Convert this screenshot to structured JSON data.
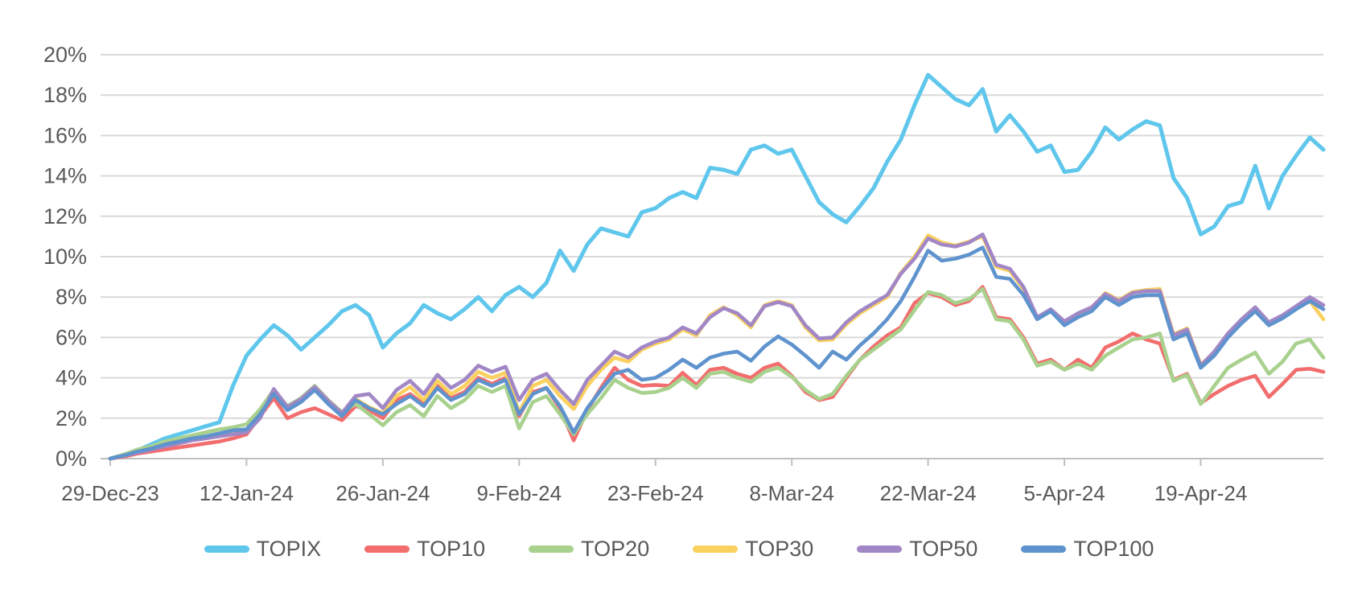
{
  "chart_data": {
    "type": "line",
    "title": "",
    "xlabel": "",
    "ylabel": "",
    "ylim": [
      0,
      20
    ],
    "y_tick_step": 2,
    "y_tick_labels": [
      "0%",
      "2%",
      "4%",
      "6%",
      "8%",
      "10%",
      "12%",
      "14%",
      "16%",
      "18%",
      "20%"
    ],
    "grid": "horizontal",
    "legend_position": "bottom",
    "n_points": 90,
    "x_unit": "weekday trading days",
    "x_tick_indices": [
      0,
      10,
      20,
      30,
      40,
      50,
      60,
      70,
      80
    ],
    "x_tick_labels": [
      "29-Dec-23",
      "12-Jan-24",
      "26-Jan-24",
      "9-Feb-24",
      "23-Feb-24",
      "8-Mar-24",
      "22-Mar-24",
      "5-Apr-24",
      "19-Apr-24"
    ],
    "series": [
      {
        "name": "TOPIX",
        "color": "#5FC6EC",
        "stroke_width": 5,
        "values": [
          0,
          0.2,
          0.4,
          0.7,
          1.0,
          1.2,
          1.4,
          1.6,
          1.8,
          3.6,
          5.1,
          5.9,
          6.6,
          6.1,
          5.4,
          6.0,
          6.6,
          7.3,
          7.6,
          7.1,
          5.5,
          6.2,
          6.7,
          7.6,
          7.2,
          6.9,
          7.4,
          8.0,
          7.3,
          8.1,
          8.5,
          8.0,
          8.7,
          10.3,
          9.3,
          10.6,
          11.4,
          11.2,
          11.0,
          12.2,
          12.4,
          12.9,
          13.2,
          12.9,
          14.4,
          14.3,
          14.1,
          15.3,
          15.5,
          15.1,
          15.3,
          14.0,
          12.7,
          12.1,
          11.7,
          12.5,
          13.4,
          14.7,
          15.8,
          17.5,
          19.0,
          18.4,
          17.8,
          17.5,
          18.3,
          16.2,
          17.0,
          16.2,
          15.2,
          15.5,
          14.2,
          14.3,
          15.2,
          16.4,
          15.8,
          16.3,
          16.7,
          16.5,
          13.9,
          12.9,
          11.1,
          11.5,
          12.5,
          12.7,
          14.5,
          12.4,
          14.0,
          15.0,
          15.9,
          15.3
        ]
      },
      {
        "name": "TOP10",
        "color": "#F26D6D",
        "stroke_width": 4.6,
        "values": [
          0,
          0.1,
          0.25,
          0.35,
          0.45,
          0.55,
          0.65,
          0.75,
          0.85,
          1.0,
          1.2,
          2.1,
          3.0,
          2.0,
          2.3,
          2.5,
          2.2,
          1.9,
          2.6,
          2.4,
          2.0,
          2.9,
          3.2,
          2.7,
          3.6,
          3.0,
          3.3,
          4.0,
          3.7,
          4.0,
          2.1,
          3.3,
          3.5,
          2.5,
          0.9,
          2.4,
          3.5,
          4.5,
          3.9,
          3.6,
          3.65,
          3.6,
          4.25,
          3.65,
          4.4,
          4.5,
          4.2,
          4.0,
          4.5,
          4.7,
          4.1,
          3.3,
          2.9,
          3.05,
          4.0,
          4.9,
          5.55,
          6.1,
          6.5,
          7.7,
          8.2,
          8.0,
          7.6,
          7.8,
          8.5,
          7.0,
          6.9,
          6.0,
          4.7,
          4.9,
          4.4,
          4.9,
          4.5,
          5.5,
          5.8,
          6.2,
          5.9,
          5.7,
          3.9,
          4.2,
          2.75,
          3.2,
          3.6,
          3.9,
          4.1,
          3.05,
          3.7,
          4.4,
          4.45,
          4.3
        ]
      },
      {
        "name": "TOP20",
        "color": "#A9D18E",
        "stroke_width": 4.6,
        "values": [
          0,
          0.2,
          0.45,
          0.6,
          0.85,
          1.0,
          1.15,
          1.3,
          1.45,
          1.55,
          1.7,
          2.45,
          3.4,
          2.6,
          3.0,
          3.6,
          2.9,
          2.3,
          2.7,
          2.2,
          1.65,
          2.3,
          2.65,
          2.1,
          3.1,
          2.5,
          2.9,
          3.6,
          3.3,
          3.6,
          1.5,
          2.8,
          3.1,
          2.2,
          1.2,
          2.2,
          3.0,
          3.9,
          3.5,
          3.25,
          3.3,
          3.5,
          4.0,
          3.5,
          4.2,
          4.3,
          4.0,
          3.8,
          4.3,
          4.5,
          4.05,
          3.4,
          2.95,
          3.2,
          4.1,
          4.9,
          5.4,
          5.9,
          6.4,
          7.35,
          8.25,
          8.1,
          7.7,
          7.9,
          8.4,
          6.9,
          6.8,
          5.9,
          4.6,
          4.8,
          4.4,
          4.7,
          4.4,
          5.1,
          5.5,
          5.9,
          6.0,
          6.2,
          3.85,
          4.15,
          2.7,
          3.6,
          4.5,
          4.9,
          5.25,
          4.2,
          4.8,
          5.7,
          5.9,
          5.0
        ]
      },
      {
        "name": "TOP30",
        "color": "#FAD05F",
        "stroke_width": 4.6,
        "values": [
          0,
          0.15,
          0.35,
          0.5,
          0.7,
          0.85,
          1.0,
          1.1,
          1.25,
          1.35,
          1.4,
          2.15,
          3.25,
          2.45,
          2.85,
          3.45,
          2.75,
          2.15,
          2.95,
          2.55,
          2.25,
          3.1,
          3.55,
          2.9,
          3.85,
          3.2,
          3.6,
          4.3,
          4.0,
          4.25,
          2.3,
          3.6,
          3.9,
          3.1,
          2.45,
          3.6,
          4.4,
          5.0,
          4.8,
          5.4,
          5.7,
          5.9,
          6.4,
          6.1,
          7.1,
          7.5,
          7.1,
          6.5,
          7.6,
          7.8,
          7.6,
          6.5,
          5.85,
          5.9,
          6.65,
          7.2,
          7.6,
          8.0,
          9.2,
          10.0,
          11.05,
          10.7,
          10.55,
          10.75,
          11.0,
          9.5,
          9.3,
          8.4,
          6.95,
          7.35,
          6.75,
          7.15,
          7.45,
          8.2,
          7.85,
          8.25,
          8.35,
          8.4,
          6.15,
          6.45,
          4.65,
          5.25,
          6.15,
          6.85,
          7.45,
          6.7,
          7.05,
          7.5,
          7.8,
          6.9
        ]
      },
      {
        "name": "TOP50",
        "color": "#A287C6",
        "stroke_width": 4.6,
        "values": [
          0,
          0.15,
          0.3,
          0.45,
          0.6,
          0.75,
          0.9,
          1.0,
          1.1,
          1.2,
          1.3,
          2.0,
          3.45,
          2.55,
          2.95,
          3.55,
          2.85,
          2.25,
          3.1,
          3.2,
          2.5,
          3.4,
          3.85,
          3.2,
          4.15,
          3.5,
          3.9,
          4.6,
          4.3,
          4.55,
          2.9,
          3.9,
          4.2,
          3.4,
          2.7,
          3.9,
          4.6,
          5.3,
          5.0,
          5.5,
          5.8,
          6.0,
          6.5,
          6.2,
          7.0,
          7.45,
          7.2,
          6.6,
          7.55,
          7.75,
          7.55,
          6.6,
          5.95,
          6.0,
          6.75,
          7.3,
          7.7,
          8.1,
          9.15,
          9.9,
          10.9,
          10.6,
          10.5,
          10.7,
          11.1,
          9.6,
          9.4,
          8.5,
          7.0,
          7.4,
          6.8,
          7.2,
          7.5,
          8.15,
          7.8,
          8.2,
          8.3,
          8.3,
          6.1,
          6.4,
          4.6,
          5.3,
          6.2,
          6.9,
          7.5,
          6.75,
          7.1,
          7.55,
          8.0,
          7.6
        ]
      },
      {
        "name": "TOP100",
        "color": "#5F93CE",
        "stroke_width": 4.6,
        "values": [
          0,
          0.15,
          0.35,
          0.5,
          0.7,
          0.85,
          1.0,
          1.1,
          1.25,
          1.4,
          1.45,
          2.2,
          3.2,
          2.4,
          2.8,
          3.4,
          2.7,
          2.1,
          2.9,
          2.5,
          2.2,
          2.7,
          3.1,
          2.6,
          3.5,
          2.9,
          3.2,
          3.9,
          3.6,
          3.9,
          2.2,
          3.2,
          3.5,
          2.6,
          1.3,
          2.5,
          3.4,
          4.2,
          4.4,
          3.9,
          4.0,
          4.4,
          4.9,
          4.5,
          5.0,
          5.2,
          5.3,
          4.85,
          5.55,
          6.05,
          5.65,
          5.1,
          4.5,
          5.3,
          4.9,
          5.6,
          6.2,
          6.9,
          7.8,
          9.0,
          10.3,
          9.8,
          9.9,
          10.1,
          10.45,
          9.0,
          8.9,
          8.1,
          6.9,
          7.3,
          6.6,
          7.0,
          7.3,
          8.0,
          7.6,
          8.0,
          8.1,
          8.1,
          5.9,
          6.2,
          4.5,
          5.1,
          6.0,
          6.7,
          7.3,
          6.6,
          6.95,
          7.4,
          7.8,
          7.4
        ]
      }
    ]
  },
  "style": {
    "axis_text_color": "#595959",
    "grid_color": "#D9D9D9",
    "axis_line_color": "#BFBFBF",
    "background": "#FFFFFF"
  }
}
